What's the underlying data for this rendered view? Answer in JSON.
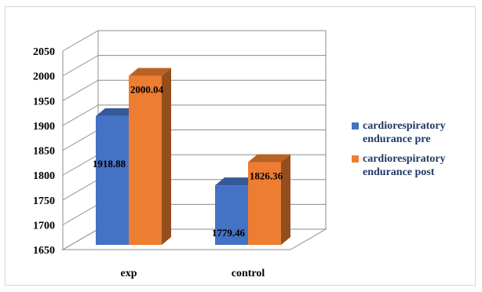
{
  "chart_data": {
    "type": "bar",
    "categories": [
      "exp",
      "control"
    ],
    "series": [
      {
        "name": "cardiorespiratory endurance pre",
        "values": [
          1918.88,
          1779.46
        ],
        "color": "#4472c4",
        "labels": [
          "1918.88",
          "1779.46"
        ]
      },
      {
        "name": "cardiorespiratory endurance post",
        "values": [
          2000.04,
          1826.36
        ],
        "color": "#ed7d31",
        "labels": [
          "2000.04",
          "1826.36"
        ]
      }
    ],
    "ylim": [
      1650,
      2050
    ],
    "yticks": [
      "1650",
      "1700",
      "1750",
      "1800",
      "1850",
      "1900",
      "1950",
      "2000",
      "2050"
    ],
    "grid": true,
    "style": "3d-clustered-column",
    "legend_position": "right"
  }
}
